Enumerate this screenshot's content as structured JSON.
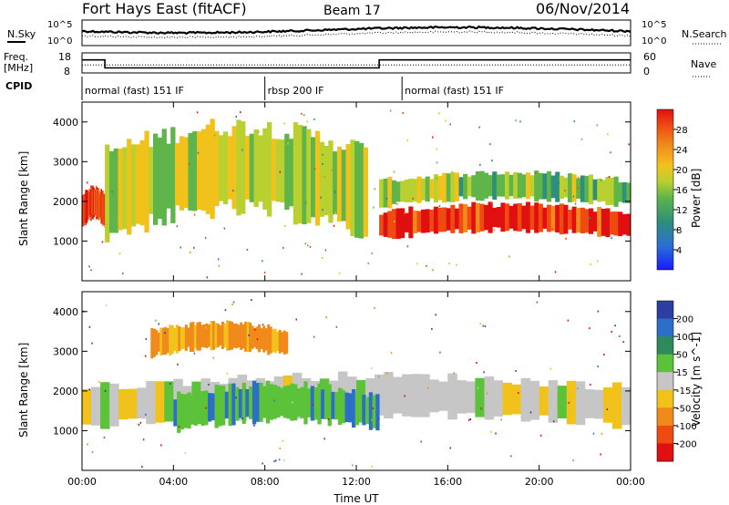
{
  "header": {
    "station": "Fort Hays East (fitACF)",
    "beam": "Beam 17",
    "date": "06/Nov/2014"
  },
  "noise_panel": {
    "left_label": "N.Sky",
    "left_ticks": [
      "10^5",
      "10^0"
    ],
    "right_label": "N.Search",
    "right_ticks": [
      "10^5",
      "10^0"
    ]
  },
  "freq_panel": {
    "left_label_1": "Freq.",
    "left_label_2": "[MHz]",
    "left_ticks": [
      "18",
      "8"
    ],
    "right_label": "Nave",
    "right_ticks": [
      "60",
      "0"
    ]
  },
  "cpid_panel": {
    "label": "CPID",
    "segments": [
      {
        "text": "normal (fast) 151 IF",
        "start_hour": 0,
        "end_hour": 8
      },
      {
        "text": "rbsp 200 IF",
        "start_hour": 8,
        "end_hour": 14
      },
      {
        "text": "normal (fast) 151 IF",
        "start_hour": 14,
        "end_hour": 24
      }
    ]
  },
  "x_axis": {
    "label": "Time UT",
    "ticks": [
      "00:00",
      "04:00",
      "08:00",
      "12:00",
      "16:00",
      "20:00",
      "00:00"
    ]
  },
  "power_panel": {
    "ylabel": "Slant Range [km]",
    "yticks": [
      "1000",
      "2000",
      "3000",
      "4000"
    ],
    "colorbar_label": "Power [dB]",
    "colorbar_ticks": [
      "4",
      "8",
      "12",
      "16",
      "20",
      "24",
      "28"
    ]
  },
  "velocity_panel": {
    "ylabel": "Slant Range [km]",
    "yticks": [
      "1000",
      "2000",
      "3000",
      "4000"
    ],
    "colorbar_label": "Velocity [m s^-1]",
    "colorbar_ticks": [
      "200",
      "100",
      "50",
      "15",
      "-15",
      "-50",
      "-100",
      "-200"
    ]
  },
  "chart_data": [
    {
      "type": "line",
      "title": "Fort Hays East (fitACF)",
      "x": {
        "range_hours": [
          0,
          24
        ],
        "ticks": [
          "00:00",
          "04:00",
          "08:00",
          "12:00",
          "16:00",
          "20:00",
          "00:00"
        ]
      },
      "series": [
        {
          "name": "N.Sky",
          "style": "solid"
        },
        {
          "name": "N.Search",
          "style": "dotted"
        }
      ]
    },
    {
      "type": "line",
      "ylabel": "Freq. [MHz]",
      "ylim": [
        8,
        18
      ],
      "series": [
        {
          "name": "Freq.",
          "style": "solid",
          "steps": [
            {
              "x0": 0,
              "x1": 1.0,
              "y": 14.5
            },
            {
              "x0": 1.0,
              "x1": 13.0,
              "y": 10.5
            },
            {
              "x0": 13.0,
              "x1": 24,
              "y": 14.5
            }
          ]
        },
        {
          "name": "Nave",
          "style": "dotted",
          "steps": [
            {
              "x0": 0,
              "x1": 24,
              "y": 12.0
            }
          ]
        }
      ]
    },
    {
      "type": "heatmap",
      "ylabel": "Slant Range [km]",
      "ylim": [
        0,
        4500
      ],
      "xlim_hours": [
        0,
        24
      ],
      "colorbar": {
        "label": "Power [dB]",
        "range": [
          0,
          32
        ]
      },
      "regions": [
        {
          "desc": "morning band",
          "hour_range": [
            0,
            1
          ],
          "range_km": [
            1300,
            2200
          ],
          "value_db": 28
        },
        {
          "desc": "rising arc",
          "hour_range": [
            1,
            12.5
          ],
          "range_km": [
            900,
            3500
          ],
          "value_db": 16
        },
        {
          "desc": "night band",
          "hour_range": [
            13,
            24
          ],
          "range_km": [
            1000,
            1800
          ],
          "value_db": 28
        },
        {
          "desc": "upper scatter",
          "hour_range": [
            13,
            24
          ],
          "range_km": [
            1800,
            2600
          ],
          "value_db": 14
        }
      ]
    },
    {
      "type": "heatmap",
      "ylabel": "Slant Range [km]",
      "ylim": [
        0,
        4500
      ],
      "xlim_hours": [
        0,
        24
      ],
      "colorbar": {
        "label": "Velocity [m s^-1]",
        "range": [
          -200,
          200
        ]
      },
      "regions": [
        {
          "desc": "ground scatter",
          "hour_range": [
            0,
            24
          ],
          "range_km": [
            1000,
            2200
          ],
          "value_ms": 0
        },
        {
          "desc": "positive flow",
          "hour_range": [
            4,
            13
          ],
          "range_km": [
            900,
            2000
          ],
          "value_ms": 40
        },
        {
          "desc": "negative arc",
          "hour_range": [
            3,
            9
          ],
          "range_km": [
            2800,
            3600
          ],
          "value_ms": -60
        }
      ]
    }
  ]
}
